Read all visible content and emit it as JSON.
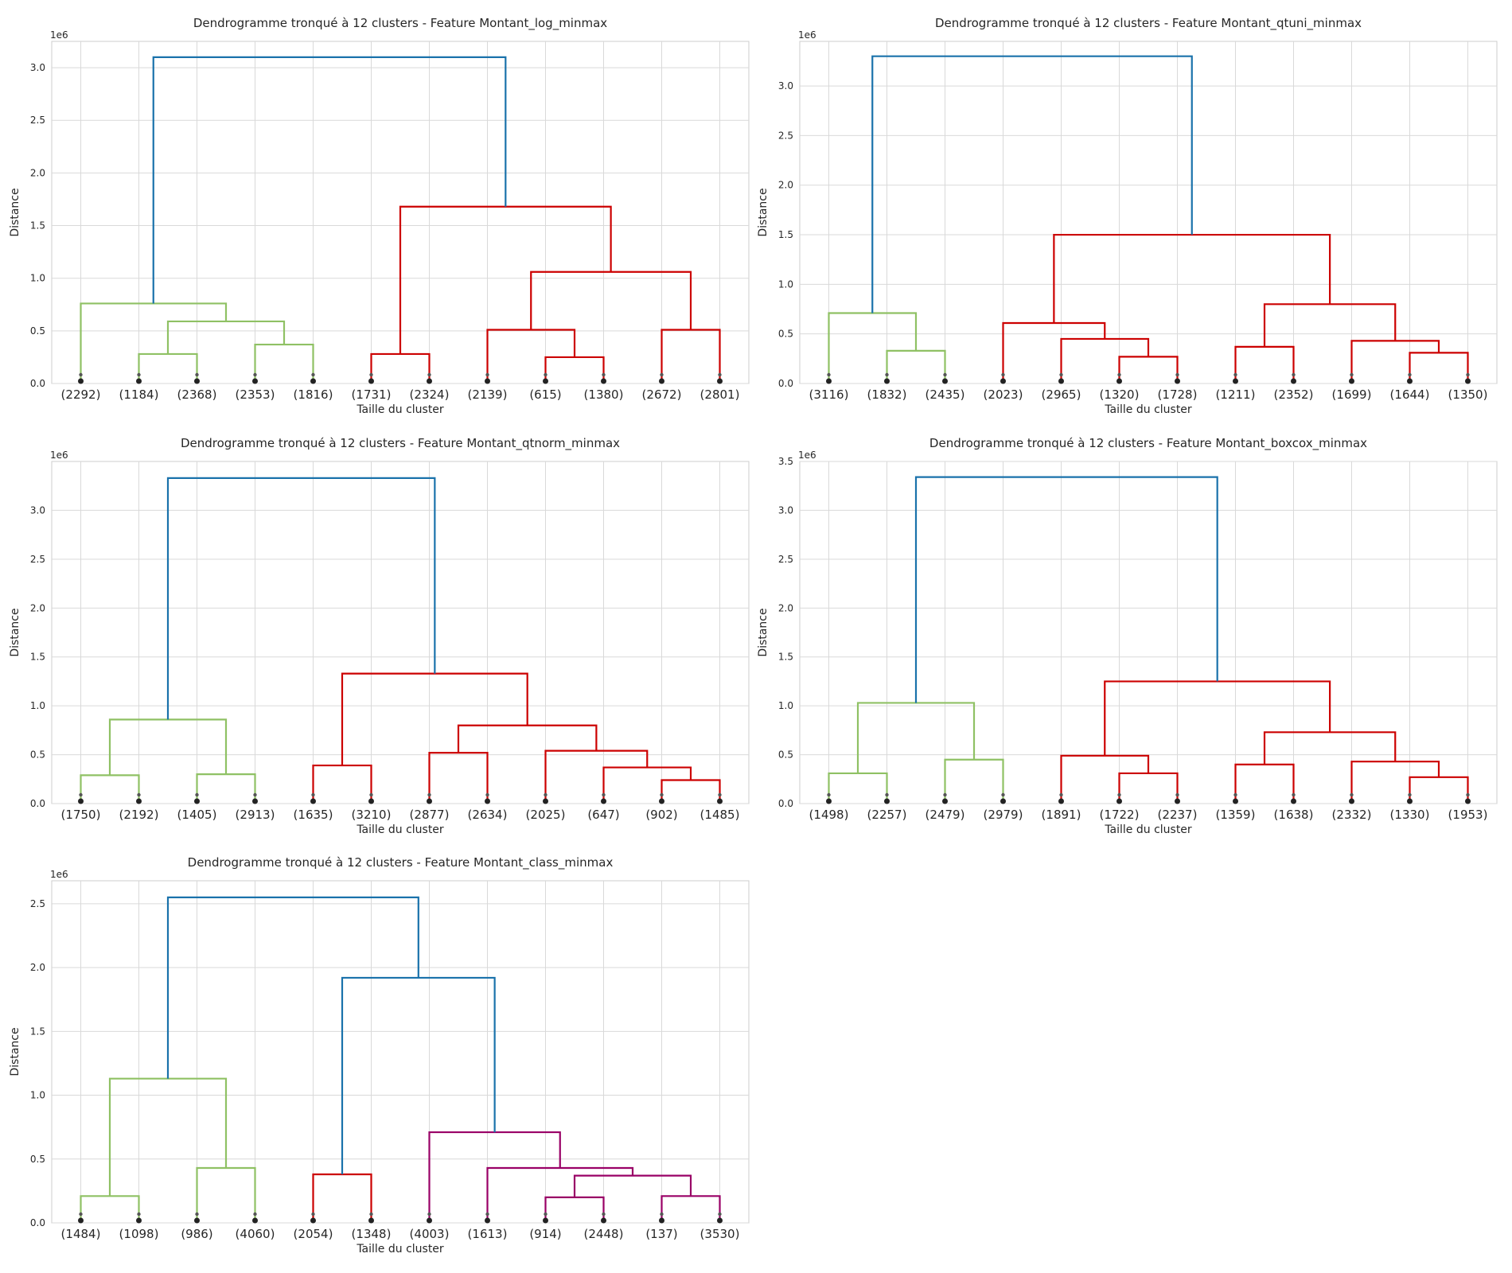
{
  "chart_data": [
    {
      "type": "dendrogram",
      "title": "Dendrogramme tronqué à 12 clusters - Feature Montant_log_minmax",
      "xlabel": "Taille du cluster",
      "ylabel": "Distance",
      "scale_label": "1e6",
      "ylim": [
        0,
        3.25
      ],
      "yticks": [
        0.0,
        0.5,
        1.0,
        1.5,
        2.0,
        2.5,
        3.0
      ],
      "grid": true,
      "leaves": [
        "(2292)",
        "(1184)",
        "(2368)",
        "(2353)",
        "(1816)",
        "(1731)",
        "(2324)",
        "(2139)",
        "(615)",
        "(1380)",
        "(2672)",
        "(2801)"
      ],
      "merges": [
        {
          "left": 1,
          "right": 2,
          "height": 0.28,
          "color": "#8fc164"
        },
        {
          "left": 3,
          "right": 4,
          "height": 0.37,
          "color": "#8fc164"
        },
        {
          "left": "m0",
          "right": "m1",
          "height": 0.59,
          "color": "#8fc164"
        },
        {
          "left": 0,
          "right": "m2",
          "height": 0.76,
          "color": "#8fc164"
        },
        {
          "left": 8,
          "right": 9,
          "height": 0.25,
          "color": "#cc0000"
        },
        {
          "left": 7,
          "right": "m4",
          "height": 0.51,
          "color": "#cc0000"
        },
        {
          "left": 10,
          "right": 11,
          "height": 0.51,
          "color": "#cc0000"
        },
        {
          "left": "m5",
          "right": "m6",
          "height": 1.06,
          "color": "#cc0000"
        },
        {
          "left": 5,
          "right": 6,
          "height": 0.28,
          "color": "#cc0000"
        },
        {
          "left": "m8",
          "right": "m7",
          "height": 1.68,
          "color": "#cc0000"
        },
        {
          "left": "m3",
          "right": "m9",
          "height": 3.1,
          "color": "#1a72ab"
        }
      ]
    },
    {
      "type": "dendrogram",
      "title": "Dendrogramme tronqué à 12 clusters - Feature Montant_qtuni_minmax",
      "xlabel": "Taille du cluster",
      "ylabel": "Distance",
      "scale_label": "1e6",
      "ylim": [
        0,
        3.45
      ],
      "yticks": [
        0.0,
        0.5,
        1.0,
        1.5,
        2.0,
        2.5,
        3.0
      ],
      "grid": true,
      "leaves": [
        "(3116)",
        "(1832)",
        "(2435)",
        "(2023)",
        "(2965)",
        "(1320)",
        "(1728)",
        "(1211)",
        "(2352)",
        "(1699)",
        "(1644)",
        "(1350)"
      ],
      "merges": [
        {
          "left": 1,
          "right": 2,
          "height": 0.33,
          "color": "#8fc164"
        },
        {
          "left": 0,
          "right": "m0",
          "height": 0.71,
          "color": "#8fc164"
        },
        {
          "left": 5,
          "right": 6,
          "height": 0.27,
          "color": "#cc0000"
        },
        {
          "left": 4,
          "right": "m2",
          "height": 0.45,
          "color": "#cc0000"
        },
        {
          "left": 3,
          "right": "m3",
          "height": 0.61,
          "color": "#cc0000"
        },
        {
          "left": 10,
          "right": 11,
          "height": 0.31,
          "color": "#cc0000"
        },
        {
          "left": 9,
          "right": "m5",
          "height": 0.43,
          "color": "#cc0000"
        },
        {
          "left": 7,
          "right": 8,
          "height": 0.37,
          "color": "#cc0000"
        },
        {
          "left": "m7",
          "right": "m6",
          "height": 0.8,
          "color": "#cc0000"
        },
        {
          "left": "m4",
          "right": "m8",
          "height": 1.5,
          "color": "#cc0000"
        },
        {
          "left": "m1",
          "right": "m9",
          "height": 3.3,
          "color": "#1a72ab"
        }
      ]
    },
    {
      "type": "dendrogram",
      "title": "Dendrogramme tronqué à 12 clusters - Feature Montant_qtnorm_minmax",
      "xlabel": "Taille du cluster",
      "ylabel": "Distance",
      "scale_label": "1e6",
      "ylim": [
        0,
        3.5
      ],
      "yticks": [
        0.0,
        0.5,
        1.0,
        1.5,
        2.0,
        2.5,
        3.0
      ],
      "grid": true,
      "leaves": [
        "(1750)",
        "(2192)",
        "(1405)",
        "(2913)",
        "(1635)",
        "(3210)",
        "(2877)",
        "(2634)",
        "(2025)",
        "(647)",
        "(902)",
        "(1485)"
      ],
      "merges": [
        {
          "left": 0,
          "right": 1,
          "height": 0.29,
          "color": "#8fc164"
        },
        {
          "left": 2,
          "right": 3,
          "height": 0.3,
          "color": "#8fc164"
        },
        {
          "left": "m0",
          "right": "m1",
          "height": 0.86,
          "color": "#8fc164"
        },
        {
          "left": 4,
          "right": 5,
          "height": 0.39,
          "color": "#cc0000"
        },
        {
          "left": 6,
          "right": 7,
          "height": 0.52,
          "color": "#cc0000"
        },
        {
          "left": 10,
          "right": 11,
          "height": 0.24,
          "color": "#cc0000"
        },
        {
          "left": 9,
          "right": "m5",
          "height": 0.37,
          "color": "#cc0000"
        },
        {
          "left": 8,
          "right": "m6",
          "height": 0.54,
          "color": "#cc0000"
        },
        {
          "left": "m4",
          "right": "m7",
          "height": 0.8,
          "color": "#cc0000"
        },
        {
          "left": "m3",
          "right": "m8",
          "height": 1.33,
          "color": "#cc0000"
        },
        {
          "left": "m2",
          "right": "m9",
          "height": 3.33,
          "color": "#1a72ab"
        }
      ]
    },
    {
      "type": "dendrogram",
      "title": "Dendrogramme tronqué à 12 clusters - Feature Montant_boxcox_minmax",
      "xlabel": "Taille du cluster",
      "ylabel": "Distance",
      "scale_label": "1e6",
      "ylim": [
        0,
        3.5
      ],
      "yticks": [
        0.0,
        0.5,
        1.0,
        1.5,
        2.0,
        2.5,
        3.0,
        3.5
      ],
      "grid": true,
      "leaves": [
        "(1498)",
        "(2257)",
        "(2479)",
        "(2979)",
        "(1891)",
        "(1722)",
        "(2237)",
        "(1359)",
        "(1638)",
        "(2332)",
        "(1330)",
        "(1953)"
      ],
      "merges": [
        {
          "left": 0,
          "right": 1,
          "height": 0.31,
          "color": "#8fc164"
        },
        {
          "left": 2,
          "right": 3,
          "height": 0.45,
          "color": "#8fc164"
        },
        {
          "left": "m0",
          "right": "m1",
          "height": 1.03,
          "color": "#8fc164"
        },
        {
          "left": 5,
          "right": 6,
          "height": 0.31,
          "color": "#cc0000"
        },
        {
          "left": 4,
          "right": "m3",
          "height": 0.49,
          "color": "#cc0000"
        },
        {
          "left": 10,
          "right": 11,
          "height": 0.27,
          "color": "#cc0000"
        },
        {
          "left": 9,
          "right": "m5",
          "height": 0.43,
          "color": "#cc0000"
        },
        {
          "left": 7,
          "right": 8,
          "height": 0.4,
          "color": "#cc0000"
        },
        {
          "left": "m7",
          "right": "m6",
          "height": 0.73,
          "color": "#cc0000"
        },
        {
          "left": "m4",
          "right": "m8",
          "height": 1.25,
          "color": "#cc0000"
        },
        {
          "left": "m2",
          "right": "m9",
          "height": 3.34,
          "color": "#1a72ab"
        }
      ]
    },
    {
      "type": "dendrogram",
      "title": "Dendrogramme tronqué à 12 clusters - Feature Montant_class_minmax",
      "xlabel": "Taille du cluster",
      "ylabel": "Distance",
      "scale_label": "1e6",
      "ylim": [
        0,
        2.68
      ],
      "yticks": [
        0.0,
        0.5,
        1.0,
        1.5,
        2.0,
        2.5
      ],
      "grid": true,
      "leaves": [
        "(1484)",
        "(1098)",
        "(986)",
        "(4060)",
        "(2054)",
        "(1348)",
        "(4003)",
        "(1613)",
        "(914)",
        "(2448)",
        "(137)",
        "(3530)"
      ],
      "merges": [
        {
          "left": 0,
          "right": 1,
          "height": 0.21,
          "color": "#8fc164"
        },
        {
          "left": 2,
          "right": 3,
          "height": 0.43,
          "color": "#8fc164"
        },
        {
          "left": "m0",
          "right": "m1",
          "height": 1.13,
          "color": "#8fc164"
        },
        {
          "left": 4,
          "right": 5,
          "height": 0.38,
          "color": "#cc0000"
        },
        {
          "left": 8,
          "right": 9,
          "height": 0.2,
          "color": "#990066"
        },
        {
          "left": 10,
          "right": 11,
          "height": 0.21,
          "color": "#990066"
        },
        {
          "left": "m4",
          "right": "m5",
          "height": 0.37,
          "color": "#990066"
        },
        {
          "left": 7,
          "right": "m6",
          "height": 0.43,
          "color": "#990066"
        },
        {
          "left": 6,
          "right": "m7",
          "height": 0.71,
          "color": "#990066"
        },
        {
          "left": "m3",
          "right": "m8",
          "height": 1.92,
          "color": "#1a72ab"
        },
        {
          "left": "m2",
          "right": "m9",
          "height": 2.55,
          "color": "#1a72ab"
        }
      ]
    }
  ]
}
